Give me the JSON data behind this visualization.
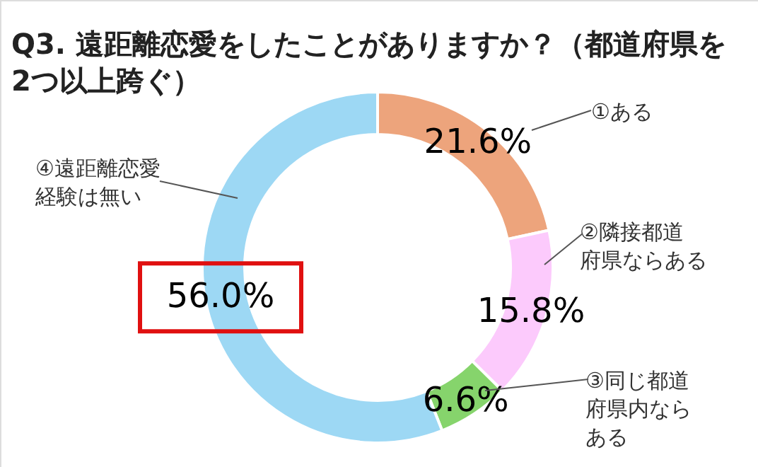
{
  "chart_data": {
    "type": "donut",
    "title": "Q3. 遠距離恋愛をしたことがありますか？（都道府県を\n2つ以上跨ぐ）",
    "categories": [
      "①ある",
      "②隣接都道府県ならある",
      "③同じ都道府県内ならある",
      "④遠距離恋愛経験は無い"
    ],
    "value_labels": [
      "21.6%",
      "15.8%",
      "6.6%",
      "56.0%"
    ],
    "values": [
      21.6,
      15.8,
      6.6,
      56.0
    ],
    "colors": [
      "#eda47c",
      "#fccafc",
      "#86d46c",
      "#9dd8f4"
    ],
    "data_labels": true,
    "legend": false
  }
}
